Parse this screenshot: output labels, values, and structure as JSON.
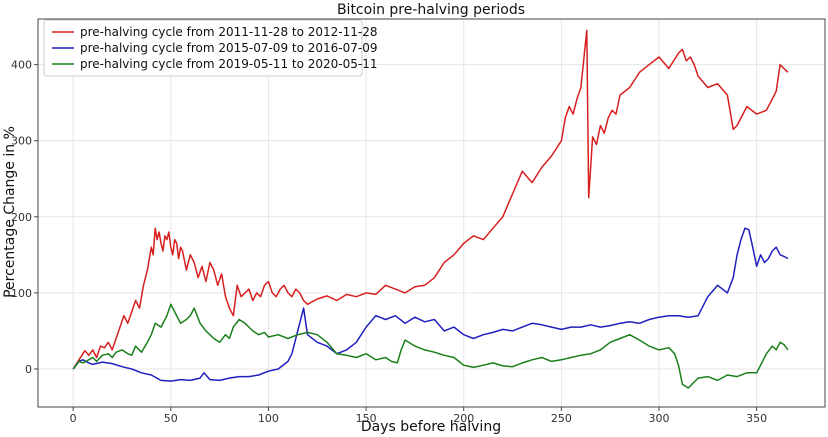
{
  "chart_data": {
    "type": "line",
    "title": "Bitcoin pre-halving periods",
    "xlabel": "Days before halving",
    "ylabel": "Percentage Change in %",
    "xlim": [
      -18,
      385
    ],
    "ylim": [
      -50,
      460
    ],
    "xticks": [
      0,
      50,
      100,
      150,
      200,
      250,
      300,
      350
    ],
    "yticks": [
      0,
      100,
      200,
      300,
      400
    ],
    "grid": true,
    "legend_position": "top-left",
    "series": [
      {
        "name": "pre-halving cycle from 2011-11-28 to 2012-11-28",
        "color": "#d62020",
        "x": [
          0,
          3,
          6,
          8,
          10,
          12,
          14,
          16,
          18,
          20,
          22,
          24,
          26,
          28,
          30,
          32,
          34,
          36,
          38,
          40,
          41,
          42,
          43,
          44,
          45,
          46,
          47,
          48,
          49,
          50,
          51,
          52,
          53,
          54,
          55,
          56,
          58,
          60,
          62,
          64,
          66,
          68,
          70,
          72,
          74,
          76,
          78,
          80,
          82,
          84,
          86,
          88,
          90,
          92,
          94,
          96,
          98,
          100,
          102,
          104,
          106,
          108,
          110,
          112,
          114,
          116,
          118,
          120,
          125,
          130,
          135,
          140,
          145,
          150,
          155,
          160,
          165,
          170,
          175,
          180,
          185,
          190,
          195,
          200,
          205,
          210,
          215,
          220,
          225,
          230,
          235,
          240,
          245,
          250,
          252,
          254,
          256,
          258,
          260,
          262,
          263,
          264,
          266,
          268,
          270,
          272,
          274,
          276,
          278,
          280,
          285,
          290,
          295,
          300,
          305,
          310,
          312,
          314,
          316,
          318,
          320,
          325,
          330,
          335,
          338,
          340,
          345,
          350,
          355,
          360,
          362,
          364,
          366
        ],
        "y": [
          0,
          12,
          24,
          18,
          25,
          15,
          30,
          28,
          35,
          25,
          40,
          55,
          70,
          60,
          75,
          90,
          80,
          110,
          130,
          160,
          150,
          185,
          170,
          180,
          165,
          155,
          175,
          170,
          180,
          160,
          150,
          170,
          165,
          145,
          160,
          155,
          130,
          150,
          140,
          120,
          135,
          115,
          140,
          130,
          110,
          125,
          95,
          80,
          70,
          110,
          95,
          100,
          105,
          90,
          100,
          95,
          110,
          115,
          100,
          95,
          105,
          110,
          100,
          95,
          105,
          100,
          90,
          85,
          92,
          96,
          90,
          98,
          95,
          100,
          98,
          110,
          105,
          100,
          108,
          110,
          120,
          140,
          150,
          165,
          175,
          170,
          185,
          200,
          230,
          260,
          245,
          265,
          280,
          300,
          330,
          345,
          335,
          355,
          370,
          420,
          445,
          225,
          305,
          295,
          320,
          310,
          330,
          340,
          335,
          360,
          370,
          390,
          400,
          410,
          395,
          415,
          420,
          405,
          410,
          400,
          385,
          370,
          375,
          360,
          315,
          320,
          345,
          335,
          340,
          365,
          400,
          395,
          390
        ]
      },
      {
        "name": "pre-halving cycle from 2015-07-09 to 2016-07-09",
        "color": "#1f1fbf",
        "x": [
          0,
          3,
          5,
          8,
          10,
          15,
          20,
          25,
          30,
          35,
          40,
          45,
          50,
          55,
          60,
          65,
          67,
          70,
          75,
          80,
          85,
          90,
          95,
          100,
          105,
          110,
          112,
          114,
          116,
          118,
          120,
          125,
          130,
          135,
          140,
          145,
          150,
          155,
          160,
          165,
          170,
          175,
          180,
          185,
          190,
          195,
          200,
          205,
          210,
          215,
          220,
          225,
          230,
          235,
          240,
          245,
          250,
          255,
          260,
          265,
          270,
          275,
          280,
          285,
          290,
          295,
          300,
          305,
          310,
          315,
          320,
          325,
          330,
          335,
          338,
          340,
          342,
          344,
          346,
          348,
          350,
          352,
          354,
          356,
          358,
          360,
          362,
          364,
          366
        ],
        "y": [
          0,
          10,
          12,
          8,
          6,
          9,
          7,
          3,
          0,
          -5,
          -8,
          -15,
          -16,
          -14,
          -15,
          -12,
          -5,
          -14,
          -15,
          -12,
          -10,
          -10,
          -8,
          -3,
          0,
          10,
          20,
          40,
          60,
          80,
          45,
          35,
          30,
          20,
          25,
          35,
          55,
          70,
          65,
          70,
          60,
          68,
          62,
          65,
          50,
          55,
          45,
          40,
          45,
          48,
          52,
          50,
          55,
          60,
          58,
          55,
          52,
          55,
          55,
          58,
          55,
          57,
          60,
          62,
          60,
          65,
          68,
          70,
          70,
          68,
          70,
          95,
          110,
          100,
          120,
          150,
          170,
          185,
          183,
          160,
          135,
          150,
          140,
          145,
          155,
          160,
          150,
          148,
          145
        ]
      },
      {
        "name": "pre-halving cycle from 2019-05-11 to 2020-05-11",
        "color": "#1b7f1b",
        "x": [
          0,
          3,
          5,
          8,
          10,
          12,
          15,
          18,
          20,
          22,
          25,
          28,
          30,
          32,
          35,
          38,
          40,
          42,
          45,
          48,
          50,
          52,
          55,
          58,
          60,
          62,
          65,
          68,
          70,
          72,
          75,
          78,
          80,
          82,
          85,
          88,
          90,
          92,
          95,
          98,
          100,
          105,
          110,
          115,
          120,
          125,
          130,
          135,
          140,
          145,
          150,
          155,
          160,
          163,
          166,
          168,
          170,
          175,
          180,
          185,
          190,
          195,
          200,
          205,
          210,
          215,
          220,
          225,
          230,
          235,
          240,
          245,
          250,
          255,
          260,
          265,
          270,
          275,
          280,
          285,
          290,
          295,
          300,
          305,
          308,
          310,
          312,
          315,
          320,
          325,
          330,
          335,
          340,
          345,
          350,
          352,
          355,
          358,
          360,
          362,
          364,
          366
        ],
        "y": [
          0,
          10,
          8,
          12,
          15,
          10,
          18,
          20,
          15,
          22,
          25,
          20,
          18,
          30,
          22,
          35,
          45,
          60,
          55,
          70,
          85,
          75,
          60,
          65,
          70,
          80,
          60,
          50,
          45,
          40,
          35,
          45,
          40,
          55,
          65,
          60,
          55,
          50,
          45,
          48,
          42,
          45,
          40,
          45,
          48,
          45,
          35,
          20,
          18,
          15,
          20,
          12,
          15,
          10,
          8,
          25,
          38,
          30,
          25,
          22,
          18,
          15,
          5,
          2,
          5,
          8,
          4,
          3,
          8,
          12,
          15,
          10,
          12,
          15,
          18,
          20,
          25,
          35,
          40,
          45,
          38,
          30,
          25,
          28,
          20,
          5,
          -20,
          -25,
          -12,
          -10,
          -15,
          -8,
          -10,
          -5,
          -5,
          5,
          20,
          30,
          25,
          35,
          32,
          25
        ]
      }
    ]
  }
}
